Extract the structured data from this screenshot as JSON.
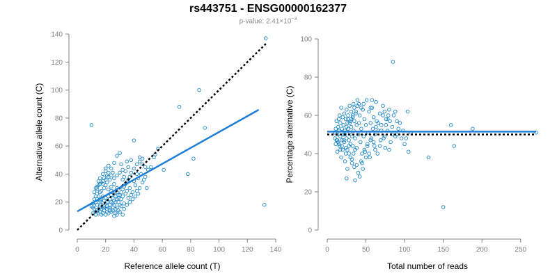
{
  "figure": {
    "title": "rs443751 - ENSG00000162377",
    "subtitle_prefix": "p-value: 2.41×10",
    "subtitle_exp": "−3"
  },
  "colors": {
    "points": "#1c86c8",
    "fit": "#1f7fd8",
    "reference": "#000000",
    "axis": "#808080"
  },
  "chart_data": [
    {
      "type": "scatter",
      "xlabel": "Reference allele count (T)",
      "ylabel": "Alternative allele count (C)",
      "xlim": [
        0,
        140
      ],
      "ylim": [
        0,
        140
      ],
      "xticks": [
        0,
        20,
        40,
        60,
        80,
        100,
        120,
        140
      ],
      "yticks": [
        0,
        20,
        40,
        60,
        80,
        100,
        120,
        140
      ],
      "points": [
        [
          10,
          75
        ],
        [
          133,
          137
        ],
        [
          132,
          18
        ],
        [
          86,
          100
        ],
        [
          90,
          73
        ],
        [
          72,
          88
        ],
        [
          82,
          51
        ],
        [
          78,
          40
        ],
        [
          61,
          43
        ],
        [
          55,
          54
        ],
        [
          49,
          30
        ],
        [
          48,
          45
        ],
        [
          46,
          47
        ],
        [
          44,
          52
        ],
        [
          40,
          64
        ],
        [
          42,
          40
        ],
        [
          38,
          50
        ],
        [
          36,
          45
        ],
        [
          35,
          49
        ],
        [
          34,
          42
        ],
        [
          33,
          38
        ],
        [
          32,
          36
        ],
        [
          31,
          47
        ],
        [
          30,
          55
        ],
        [
          28,
          53
        ],
        [
          28,
          30
        ],
        [
          26,
          48
        ],
        [
          24,
          44
        ],
        [
          26,
          33
        ],
        [
          24,
          28
        ],
        [
          22,
          46
        ],
        [
          20,
          42
        ],
        [
          22,
          38
        ],
        [
          21,
          34
        ],
        [
          20,
          36
        ],
        [
          19,
          30
        ],
        [
          18,
          24
        ],
        [
          18,
          33
        ],
        [
          17,
          28
        ],
        [
          16,
          27
        ],
        [
          15,
          32
        ],
        [
          14,
          26
        ],
        [
          13,
          24
        ],
        [
          12,
          22
        ],
        [
          11,
          19
        ],
        [
          10,
          17
        ],
        [
          12,
          15
        ],
        [
          13,
          13
        ],
        [
          11,
          12
        ],
        [
          14,
          14
        ],
        [
          15,
          12
        ],
        [
          16,
          13
        ],
        [
          17,
          11
        ],
        [
          18,
          12
        ],
        [
          19,
          14
        ],
        [
          20,
          11
        ],
        [
          21,
          13
        ],
        [
          22,
          12
        ],
        [
          23,
          14
        ],
        [
          24,
          13
        ],
        [
          25,
          16
        ],
        [
          26,
          18
        ],
        [
          27,
          12
        ],
        [
          28,
          16
        ],
        [
          29,
          20
        ],
        [
          30,
          18
        ],
        [
          31,
          22
        ],
        [
          32,
          24
        ],
        [
          33,
          19
        ],
        [
          34,
          26
        ],
        [
          35,
          28
        ],
        [
          36,
          23
        ],
        [
          37,
          30
        ],
        [
          38,
          25
        ],
        [
          39,
          27
        ],
        [
          40,
          35
        ],
        [
          41,
          32
        ],
        [
          42,
          28
        ],
        [
          43,
          37
        ],
        [
          44,
          30
        ],
        [
          45,
          40
        ],
        [
          46,
          34
        ],
        [
          47,
          36
        ],
        [
          48,
          38
        ],
        [
          50,
          43
        ],
        [
          52,
          45
        ],
        [
          30,
          13
        ],
        [
          32,
          11
        ],
        [
          28,
          11
        ],
        [
          26,
          10
        ],
        [
          14,
          18
        ],
        [
          15,
          20
        ],
        [
          16,
          21
        ],
        [
          17,
          22
        ],
        [
          18,
          19
        ],
        [
          19,
          21
        ],
        [
          20,
          23
        ],
        [
          21,
          20
        ],
        [
          22,
          24
        ],
        [
          23,
          22
        ],
        [
          24,
          25
        ],
        [
          25,
          23
        ],
        [
          26,
          26
        ],
        [
          27,
          24
        ],
        [
          28,
          27
        ],
        [
          29,
          25
        ],
        [
          12,
          27
        ],
        [
          13,
          30
        ],
        [
          14,
          29
        ],
        [
          15,
          35
        ],
        [
          16,
          37
        ],
        [
          17,
          34
        ],
        [
          18,
          40
        ],
        [
          19,
          37
        ],
        [
          20,
          44
        ],
        [
          21,
          39
        ],
        [
          22,
          41
        ],
        [
          23,
          36
        ],
        [
          24,
          39
        ],
        [
          25,
          41
        ],
        [
          11,
          16
        ],
        [
          12,
          18
        ],
        [
          13,
          20
        ],
        [
          14,
          22
        ],
        [
          15,
          24
        ],
        [
          16,
          16
        ],
        [
          17,
          18
        ],
        [
          18,
          16
        ],
        [
          19,
          17
        ],
        [
          20,
          19
        ],
        [
          21,
          17
        ],
        [
          22,
          16
        ],
        [
          23,
          18
        ],
        [
          24,
          20
        ],
        [
          25,
          19
        ],
        [
          26,
          21
        ],
        [
          27,
          20
        ],
        [
          28,
          22
        ],
        [
          29,
          23
        ],
        [
          30,
          25
        ],
        [
          31,
          27
        ],
        [
          32,
          29
        ],
        [
          33,
          31
        ],
        [
          34,
          33
        ],
        [
          35,
          34
        ],
        [
          36,
          36
        ],
        [
          37,
          38
        ],
        [
          38,
          41
        ],
        [
          40,
          44
        ],
        [
          42,
          47
        ],
        [
          44,
          49
        ],
        [
          46,
          51
        ],
        [
          54,
          52
        ],
        [
          57,
          58
        ],
        [
          13,
          11
        ],
        [
          15,
          15
        ],
        [
          17,
          15
        ],
        [
          19,
          16
        ],
        [
          21,
          15
        ],
        [
          23,
          16
        ],
        [
          25,
          14
        ],
        [
          27,
          15
        ],
        [
          29,
          14
        ],
        [
          31,
          17
        ],
        [
          33,
          15
        ],
        [
          35,
          18
        ],
        [
          37,
          20
        ],
        [
          39,
          22
        ],
        [
          41,
          24
        ],
        [
          43,
          26
        ],
        [
          14,
          31
        ],
        [
          16,
          33
        ],
        [
          18,
          35
        ],
        [
          20,
          32
        ],
        [
          22,
          29
        ],
        [
          24,
          31
        ],
        [
          26,
          37
        ],
        [
          28,
          39
        ],
        [
          30,
          41
        ],
        [
          32,
          43
        ]
      ]
    },
    {
      "type": "scatter",
      "xlabel": "Total number of reads",
      "ylabel": "Percentage alternative (C)",
      "xlim": [
        0,
        270
      ],
      "ylim": [
        0,
        100
      ],
      "xticks": [
        0,
        50,
        100,
        150,
        200,
        250
      ],
      "yticks": [
        0,
        20,
        40,
        60,
        80,
        100
      ],
      "hline_fit": 51.5,
      "hline_ref": 50,
      "points": [
        [
          85,
          88
        ],
        [
          150,
          12
        ],
        [
          270,
          51
        ],
        [
          188,
          53
        ],
        [
          160,
          55
        ],
        [
          164,
          44
        ],
        [
          131,
          38
        ],
        [
          108,
          51
        ],
        [
          104,
          62
        ],
        [
          105,
          41
        ],
        [
          100,
          45
        ],
        [
          96,
          48
        ],
        [
          92,
          53
        ],
        [
          90,
          57
        ],
        [
          88,
          49
        ],
        [
          86,
          60
        ],
        [
          84,
          54
        ],
        [
          82,
          46
        ],
        [
          80,
          63
        ],
        [
          78,
          52
        ],
        [
          76,
          58
        ],
        [
          75,
          43
        ],
        [
          74,
          49
        ],
        [
          72,
          65
        ],
        [
          70,
          55
        ],
        [
          69,
          47
        ],
        [
          68,
          61
        ],
        [
          66,
          52
        ],
        [
          65,
          40
        ],
        [
          64,
          57
        ],
        [
          63,
          67
        ],
        [
          62,
          50
        ],
        [
          61,
          44
        ],
        [
          60,
          59
        ],
        [
          59,
          53
        ],
        [
          58,
          64
        ],
        [
          57,
          48
        ],
        [
          56,
          56
        ],
        [
          55,
          38
        ],
        [
          54,
          62
        ],
        [
          53,
          51
        ],
        [
          52,
          45
        ],
        [
          51,
          68
        ],
        [
          50,
          55
        ],
        [
          49,
          41
        ],
        [
          48,
          58
        ],
        [
          47,
          49
        ],
        [
          46,
          63
        ],
        [
          45,
          35
        ],
        [
          44,
          53
        ],
        [
          43,
          46
        ],
        [
          42,
          60
        ],
        [
          41,
          56
        ],
        [
          40,
          30
        ],
        [
          40,
          50
        ],
        [
          39,
          65
        ],
        [
          38,
          43
        ],
        [
          38,
          55
        ],
        [
          37,
          61
        ],
        [
          36,
          48
        ],
        [
          36,
          26
        ],
        [
          35,
          57
        ],
        [
          34,
          52
        ],
        [
          34,
          66
        ],
        [
          33,
          44
        ],
        [
          33,
          59
        ],
        [
          32,
          49
        ],
        [
          32,
          37
        ],
        [
          31,
          62
        ],
        [
          31,
          54
        ],
        [
          30,
          45
        ],
        [
          30,
          57
        ],
        [
          29,
          51
        ],
        [
          29,
          65
        ],
        [
          28,
          47
        ],
        [
          28,
          40
        ],
        [
          27,
          60
        ],
        [
          27,
          53
        ],
        [
          26,
          32
        ],
        [
          26,
          56
        ],
        [
          25,
          48
        ],
        [
          25,
          63
        ],
        [
          24,
          43
        ],
        [
          24,
          58
        ],
        [
          23,
          52
        ],
        [
          23,
          36
        ],
        [
          22,
          61
        ],
        [
          22,
          46
        ],
        [
          21,
          55
        ],
        [
          21,
          50
        ],
        [
          20,
          42
        ],
        [
          20,
          59
        ],
        [
          19,
          53
        ],
        [
          19,
          47
        ],
        [
          18,
          64
        ],
        [
          18,
          38
        ],
        [
          17,
          56
        ],
        [
          17,
          49
        ],
        [
          16,
          44
        ],
        [
          16,
          60
        ],
        [
          15,
          52
        ],
        [
          15,
          58
        ],
        [
          14,
          46
        ],
        [
          14,
          54
        ],
        [
          13,
          41
        ],
        [
          13,
          50
        ],
        [
          12,
          57
        ],
        [
          12,
          47
        ],
        [
          11,
          53
        ],
        [
          11,
          45
        ],
        [
          10,
          51
        ],
        [
          10,
          48
        ],
        [
          25,
          27
        ],
        [
          42,
          28
        ],
        [
          35,
          33
        ],
        [
          38,
          34
        ],
        [
          45,
          40
        ],
        [
          48,
          42
        ],
        [
          52,
          44
        ],
        [
          56,
          47
        ],
        [
          60,
          46
        ],
        [
          63,
          54
        ],
        [
          66,
          56
        ],
        [
          70,
          52
        ],
        [
          73,
          48
        ],
        [
          76,
          55
        ],
        [
          79,
          60
        ],
        [
          81,
          57
        ],
        [
          56,
          64
        ],
        [
          58,
          68
        ],
        [
          47,
          66
        ],
        [
          44,
          64
        ],
        [
          41,
          66
        ],
        [
          39,
          68
        ],
        [
          37,
          62
        ],
        [
          35,
          64
        ],
        [
          33,
          60
        ],
        [
          31,
          58
        ],
        [
          29,
          56
        ],
        [
          27,
          58
        ],
        [
          25,
          54
        ],
        [
          23,
          50
        ],
        [
          21,
          47
        ],
        [
          19,
          44
        ],
        [
          17,
          42
        ],
        [
          15,
          45
        ],
        [
          13,
          47
        ],
        [
          24,
          40
        ],
        [
          26,
          42
        ],
        [
          28,
          44
        ],
        [
          30,
          38
        ],
        [
          32,
          35
        ],
        [
          34,
          40
        ],
        [
          36,
          42
        ],
        [
          44,
          36
        ],
        [
          46,
          32
        ],
        [
          50,
          38
        ],
        [
          54,
          40
        ],
        [
          62,
          42
        ],
        [
          68,
          44
        ],
        [
          72,
          60
        ],
        [
          74,
          62
        ],
        [
          88,
          62
        ],
        [
          90,
          50
        ],
        [
          94,
          56
        ],
        [
          98,
          52
        ],
        [
          102,
          48
        ],
        [
          78,
          58
        ],
        [
          80,
          42
        ],
        [
          84,
          50
        ]
      ]
    }
  ]
}
